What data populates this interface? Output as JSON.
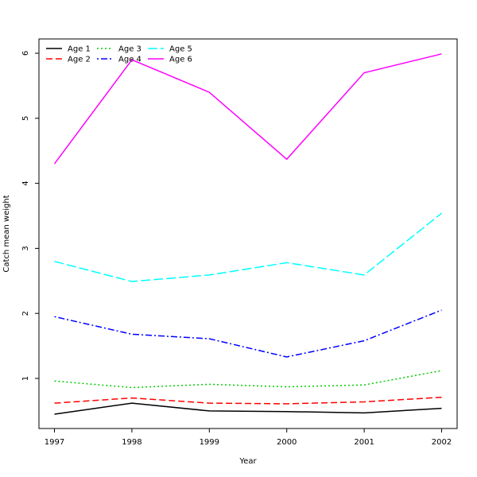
{
  "chart_data": {
    "type": "line",
    "xlabel": "Year",
    "ylabel": "Catch mean weight",
    "x": [
      1997,
      1998,
      1999,
      2000,
      2001,
      2002
    ],
    "x_tick_labels": [
      "1997",
      "1998",
      "1999",
      "2000",
      "2001",
      "2002"
    ],
    "y_ticks": [
      1,
      2,
      3,
      4,
      5,
      6
    ],
    "y_tick_labels": [
      "1",
      "2",
      "3",
      "4",
      "5",
      "6"
    ],
    "xlim": [
      1996.8,
      2002.2
    ],
    "ylim": [
      0.23,
      6.22
    ],
    "grid": false,
    "legend_position": "top-left",
    "series": [
      {
        "name": "Age 1",
        "color": "#000000",
        "dash": "solid",
        "values": [
          0.45,
          0.62,
          0.5,
          0.49,
          0.47,
          0.54
        ]
      },
      {
        "name": "Age 2",
        "color": "#ff0000",
        "dash": "dashed",
        "values": [
          0.62,
          0.7,
          0.62,
          0.61,
          0.64,
          0.71
        ]
      },
      {
        "name": "Age 3",
        "color": "#00cd00",
        "dash": "dotted",
        "values": [
          0.96,
          0.86,
          0.91,
          0.87,
          0.9,
          1.12
        ]
      },
      {
        "name": "Age 4",
        "color": "#0000ff",
        "dash": "dotdash",
        "values": [
          1.95,
          1.68,
          1.61,
          1.33,
          1.58,
          2.05
        ]
      },
      {
        "name": "Age 5",
        "color": "#00ffff",
        "dash": "longdash",
        "values": [
          2.8,
          2.49,
          2.59,
          2.78,
          2.59,
          3.54
        ]
      },
      {
        "name": "Age 6",
        "color": "#ff00ff",
        "dash": "solid",
        "values": [
          4.3,
          5.9,
          5.4,
          4.37,
          5.7,
          5.99
        ]
      }
    ]
  }
}
